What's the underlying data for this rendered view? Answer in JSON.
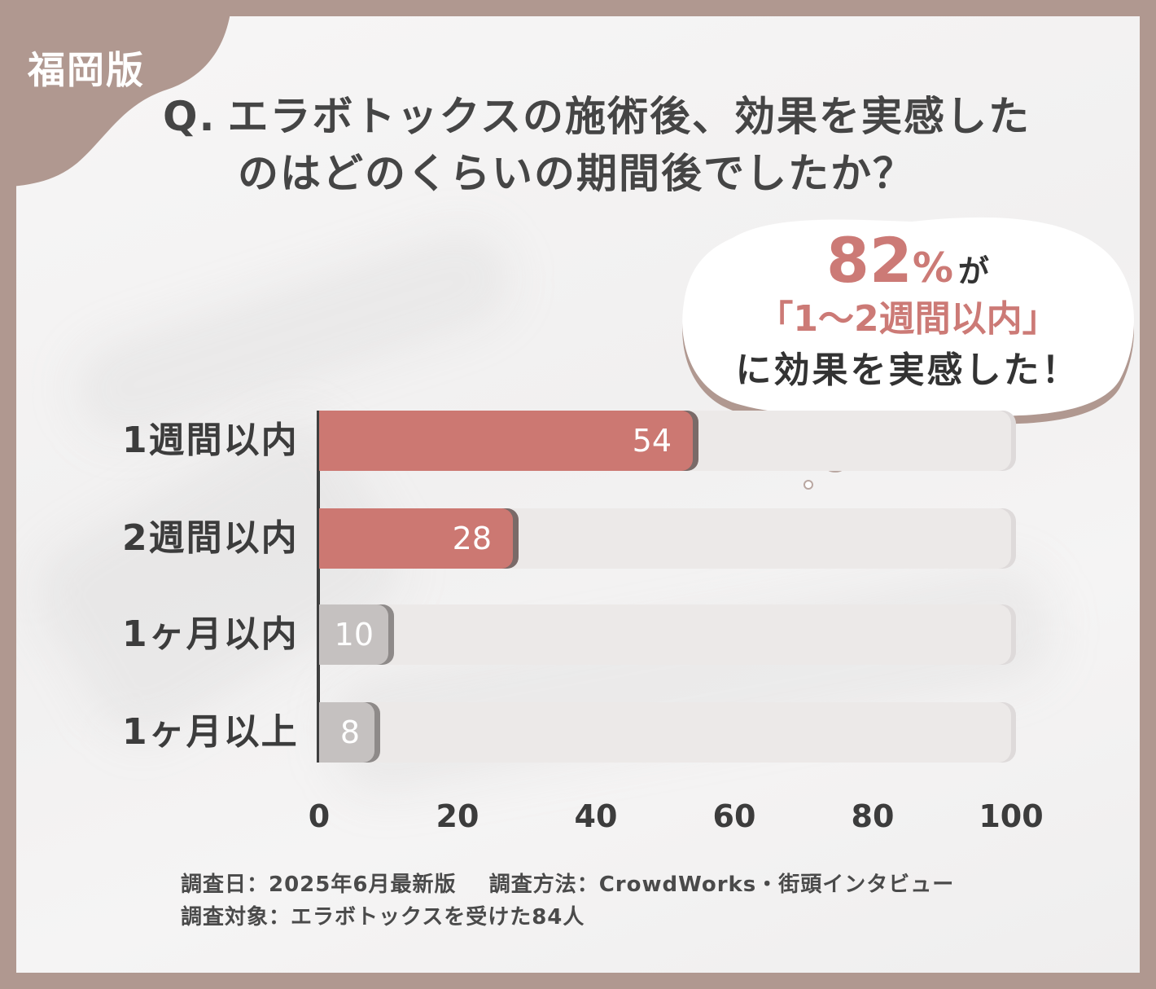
{
  "corner_label": "福岡版",
  "title": {
    "q_mark": "Q.",
    "line1": "エラボトックスの施術後、効果を実感した",
    "line2": "のはどのくらいの期間後でしたか？"
  },
  "callout": {
    "big_number": "82",
    "percent_sign": "%",
    "particle": "が",
    "line2": "「1〜2週間以内」",
    "line3": "に効果を実感した！"
  },
  "chart_data": {
    "type": "bar",
    "orientation": "horizontal",
    "categories": [
      "1週間以内",
      "2週間以内",
      "1ヶ月以内",
      "1ヶ月以上"
    ],
    "values": [
      54,
      28,
      10,
      8
    ],
    "bar_colors": [
      "#cc7872",
      "#cc7872",
      "#c5c1c0",
      "#c5c1c0"
    ],
    "xlim": [
      0,
      100
    ],
    "xticks": [
      "0",
      "20",
      "40",
      "60",
      "80",
      "100"
    ],
    "data_labels": [
      "54",
      "28",
      "10",
      "8"
    ],
    "grid": false
  },
  "footer": {
    "survey_date": "調査日：2025年6月最新版",
    "survey_method": "調査方法：CrowdWorks・街頭インタビュー",
    "survey_target": "調査対象：エラボトックスを受けた84人"
  },
  "colors": {
    "frame": "#b09890",
    "accent": "#cc7872",
    "muted_bar": "#c5c1c0",
    "text": "#3c3c3c"
  }
}
